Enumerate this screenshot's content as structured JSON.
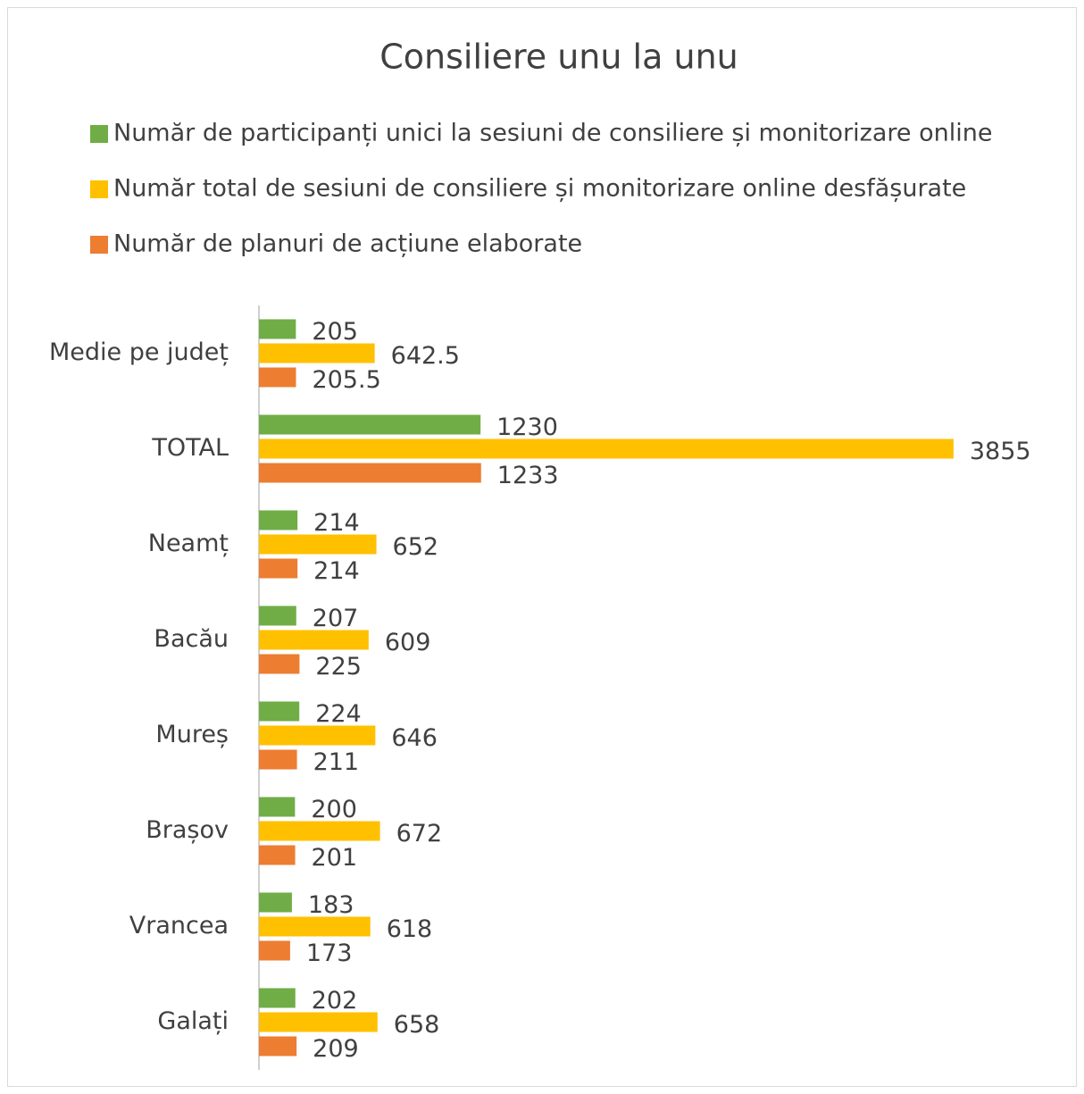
{
  "chart_data": {
    "type": "barh",
    "title": "Consiliere unu la unu",
    "categories": [
      "Medie pe județ",
      "TOTAL",
      "Neamț",
      "Bacău",
      "Mureș",
      "Brașov",
      "Vrancea",
      "Galați"
    ],
    "series": [
      {
        "name": "Număr de participanți unici la sesiuni de consiliere și monitorizare online",
        "color": "#70ad47",
        "values": [
          205,
          1230,
          214,
          207,
          224,
          200,
          183,
          202
        ]
      },
      {
        "name": "Număr total de sesiuni de consiliere și monitorizare online desfășurate",
        "color": "#ffc000",
        "values": [
          642.5,
          3855,
          652,
          609,
          646,
          672,
          618,
          658
        ]
      },
      {
        "name": "Număr de planuri de acțiune elaborate",
        "color": "#ed7d31",
        "values": [
          205.5,
          1233,
          214,
          225,
          211,
          201,
          173,
          209
        ]
      }
    ],
    "xlim": [
      0,
      4500
    ],
    "legend": "top",
    "grid": false
  }
}
